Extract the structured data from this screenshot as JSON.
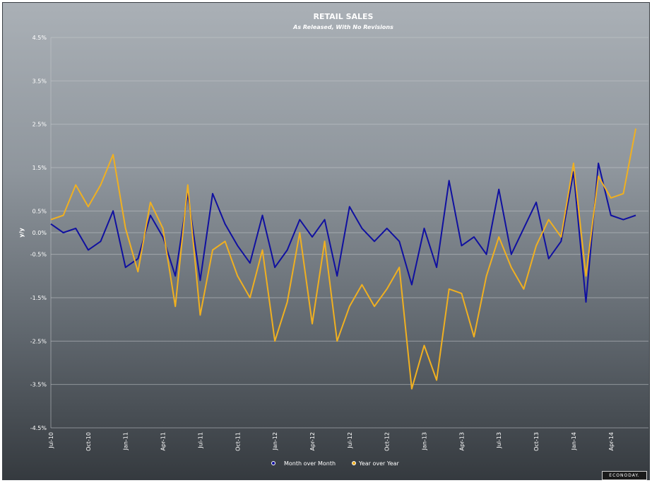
{
  "colors": {
    "mom": "#1010a0",
    "yoy": "#f0b020",
    "grid": "#c4c8cc"
  },
  "logo_text": "ECONODAY.",
  "chart_data": {
    "type": "line",
    "title": "RETAIL SALES",
    "subtitle": "As Released, With No Revisions",
    "ylabel": "y/y",
    "ylim": [
      -4.5,
      4.5
    ],
    "y_ticks": [
      {
        "value": 4.5,
        "label": "4.5%"
      },
      {
        "value": 3.5,
        "label": "3.5%"
      },
      {
        "value": 2.5,
        "label": "2.5%"
      },
      {
        "value": 1.5,
        "label": "1.5%"
      },
      {
        "value": 0.5,
        "label": "0.5%"
      },
      {
        "value": 0.0,
        "label": "0.0%"
      },
      {
        "value": -0.5,
        "label": "-0.5%"
      },
      {
        "value": -1.5,
        "label": "-1.5%"
      },
      {
        "value": -2.5,
        "label": "-2.5%"
      },
      {
        "value": -3.5,
        "label": "-3.5%"
      },
      {
        "value": -4.5,
        "label": "-4.5%"
      }
    ],
    "x_ticks": [
      {
        "index": 0,
        "label": "Jul-10"
      },
      {
        "index": 3,
        "label": "Oct-10"
      },
      {
        "index": 6,
        "label": "Jan-11"
      },
      {
        "index": 9,
        "label": "Apr-11"
      },
      {
        "index": 12,
        "label": "Jul-11"
      },
      {
        "index": 15,
        "label": "Oct-11"
      },
      {
        "index": 18,
        "label": "Jan-12"
      },
      {
        "index": 21,
        "label": "Apr-12"
      },
      {
        "index": 24,
        "label": "Jul-12"
      },
      {
        "index": 27,
        "label": "Oct-12"
      },
      {
        "index": 30,
        "label": "Jan-13"
      },
      {
        "index": 33,
        "label": "Apr-13"
      },
      {
        "index": 36,
        "label": "Jul-13"
      },
      {
        "index": 39,
        "label": "Oct-13"
      },
      {
        "index": 42,
        "label": "Jan-14"
      },
      {
        "index": 45,
        "label": "Apr-14"
      }
    ],
    "series": [
      {
        "name": "Month over Month",
        "values": [
          0.2,
          0.0,
          0.1,
          -0.4,
          -0.2,
          0.5,
          -0.8,
          -0.6,
          0.4,
          -0.1,
          -1.0,
          0.9,
          -1.1,
          0.9,
          0.2,
          -0.3,
          -0.7,
          0.4,
          -0.8,
          -0.4,
          0.3,
          -0.1,
          0.3,
          -1.0,
          0.6,
          0.1,
          -0.2,
          0.1,
          -0.2,
          -1.2,
          0.1,
          -0.8,
          1.2,
          -0.3,
          -0.1,
          -0.5,
          1.0,
          -0.5,
          0.1,
          0.7,
          -0.6,
          -0.2,
          1.4,
          -1.6,
          1.6,
          0.4,
          0.3,
          0.4
        ]
      },
      {
        "name": "Year over Year",
        "values": [
          0.3,
          0.4,
          1.1,
          0.6,
          1.1,
          1.8,
          0.1,
          -0.9,
          0.7,
          0.1,
          -1.7,
          1.1,
          -1.9,
          -0.4,
          -0.2,
          -1.0,
          -1.5,
          -0.4,
          -2.5,
          -1.6,
          0.0,
          -2.1,
          -0.2,
          -2.5,
          -1.7,
          -1.2,
          -1.7,
          -1.3,
          -0.8,
          -3.6,
          -2.6,
          -3.4,
          -1.3,
          -1.4,
          -2.4,
          -1.0,
          -0.1,
          -0.8,
          -1.3,
          -0.3,
          0.3,
          -0.1,
          1.6,
          -1.0,
          1.3,
          0.8,
          0.9,
          2.4
        ]
      }
    ]
  }
}
